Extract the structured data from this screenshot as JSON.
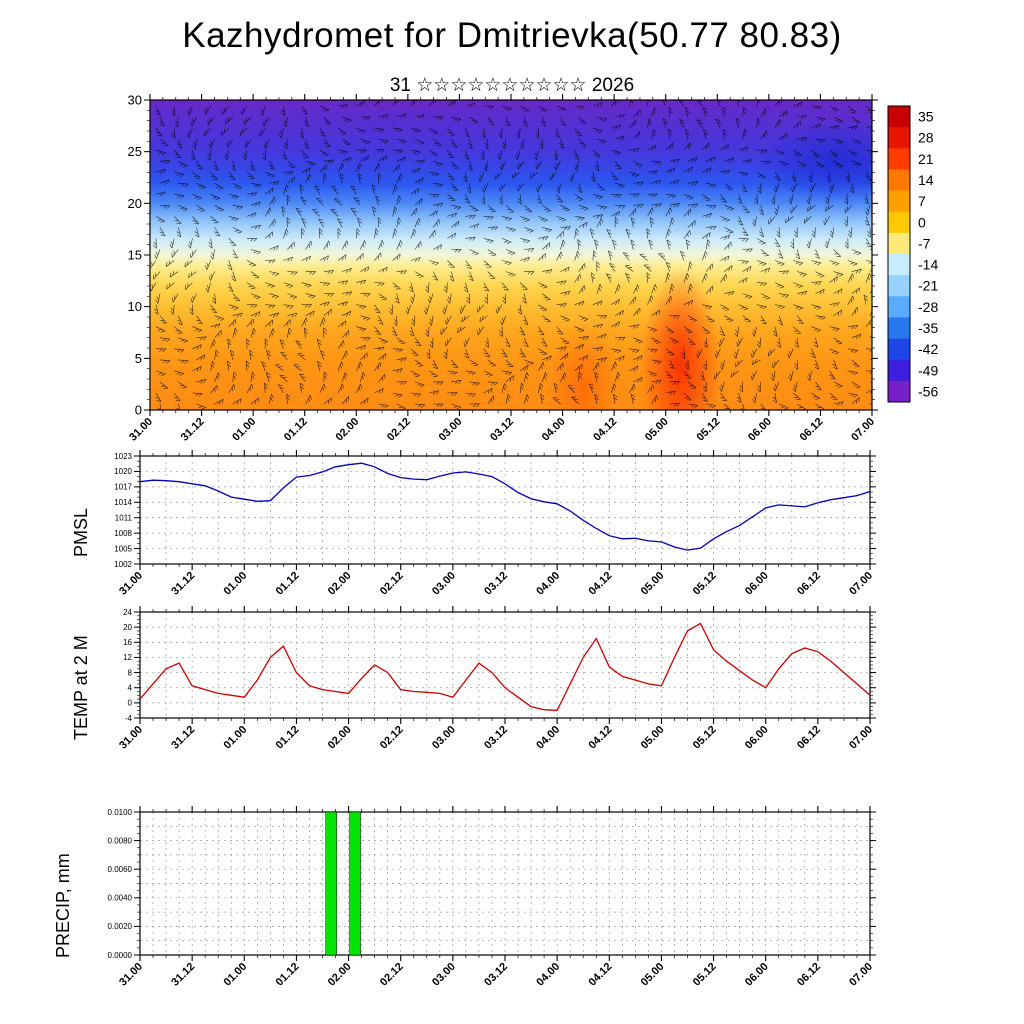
{
  "title": "Kazhydromet for Dmitrievka(50.77 80.83)",
  "subtitle": "31 ☆☆☆☆☆☆☆☆☆☆ 2026",
  "time_axis": {
    "labels": [
      "31.00",
      "31.12",
      "01.00",
      "01.12",
      "02.00",
      "02.12",
      "03.00",
      "03.12",
      "04.00",
      "04.12",
      "05.00",
      "05.12",
      "06.00",
      "06.12",
      "07.00"
    ],
    "hours_span": 168,
    "major_step_hours": 12,
    "minor_step_hours": 3
  },
  "chart_data": [
    {
      "type": "heatmap",
      "name": "cross-section",
      "label": "",
      "description": "Vertical cross-section of temperature (shaded) with wind barbs; warm orange/red near surface, cold blue/purple aloft; warmest red core near 05.00-05.12, coldest dark blue aloft at right edge",
      "ylim": [
        0,
        30
      ],
      "yticks": [
        0,
        5,
        10,
        15,
        20,
        25,
        30
      ],
      "colorbar_ticks": [
        35,
        28,
        21,
        14,
        7,
        0,
        -7,
        -14,
        -21,
        -28,
        -35,
        -42,
        -49,
        -56
      ],
      "colorbar_colors": [
        "#c80000",
        "#e61400",
        "#ff3c00",
        "#ff7800",
        "#ffa000",
        "#ffc800",
        "#ffe978",
        "#c8ecff",
        "#96d2ff",
        "#5aaaff",
        "#2878f0",
        "#1e46e6",
        "#3c1edc",
        "#7820c8"
      ],
      "fill_gradient": [
        {
          "o": 0.0,
          "c": "#6a28c8"
        },
        {
          "o": 0.08,
          "c": "#5530d2"
        },
        {
          "o": 0.16,
          "c": "#4638dc"
        },
        {
          "o": 0.22,
          "c": "#3746e6"
        },
        {
          "o": 0.27,
          "c": "#2d5af0"
        },
        {
          "o": 0.33,
          "c": "#4b85f5"
        },
        {
          "o": 0.39,
          "c": "#8ec2fa"
        },
        {
          "o": 0.45,
          "c": "#cdeafc"
        },
        {
          "o": 0.5,
          "c": "#f2f7d8"
        },
        {
          "o": 0.54,
          "c": "#fdeb8c"
        },
        {
          "o": 0.6,
          "c": "#ffd550"
        },
        {
          "o": 0.67,
          "c": "#ffbe32"
        },
        {
          "o": 0.75,
          "c": "#ffa51e"
        },
        {
          "o": 0.85,
          "c": "#ff9614"
        },
        {
          "o": 1.0,
          "c": "#ff8c14"
        }
      ],
      "features": [
        {
          "kind": "warm-core",
          "x": 0.735,
          "y": 0.86,
          "rx": 0.055,
          "ry": 0.32,
          "color": "#ff2800",
          "opacity": 0.9
        },
        {
          "kind": "warm-core",
          "x": 0.6,
          "y": 0.92,
          "rx": 0.05,
          "ry": 0.2,
          "color": "#ff5000",
          "opacity": 0.55
        },
        {
          "kind": "cold-core",
          "x": 0.95,
          "y": 0.2,
          "rx": 0.11,
          "ry": 0.13,
          "color": "#1e28d2",
          "opacity": 0.8
        },
        {
          "kind": "cold-band",
          "x": 0.5,
          "y": 0.26,
          "rx": 0.52,
          "ry": 0.035,
          "color": "#2d50ee",
          "opacity": 0.45
        }
      ],
      "overlay": "wind-barbs"
    },
    {
      "type": "line",
      "name": "pmsl",
      "label": "PMSL",
      "color": "#0000bb",
      "ylim": [
        1002,
        1023
      ],
      "yticks": [
        1002,
        1005,
        1008,
        1011,
        1014,
        1017,
        1020,
        1023
      ],
      "x_hours": [
        0,
        3,
        6,
        9,
        12,
        15,
        18,
        21,
        24,
        27,
        30,
        33,
        36,
        39,
        42,
        45,
        48,
        51,
        54,
        57,
        60,
        63,
        66,
        69,
        72,
        75,
        78,
        81,
        84,
        87,
        90,
        93,
        96,
        99,
        102,
        105,
        108,
        111,
        114,
        117,
        120,
        123,
        126,
        129,
        132,
        135,
        138,
        141,
        144,
        147,
        150,
        153,
        156,
        159,
        162,
        165,
        168
      ],
      "values": [
        1018.0,
        1018.3,
        1018.2,
        1018.0,
        1017.6,
        1017.2,
        1016.2,
        1015.0,
        1014.6,
        1014.2,
        1014.3,
        1016.8,
        1018.9,
        1019.2,
        1019.9,
        1020.9,
        1021.3,
        1021.6,
        1020.9,
        1019.6,
        1018.8,
        1018.5,
        1018.4,
        1019.1,
        1019.7,
        1019.9,
        1019.5,
        1019.0,
        1017.6,
        1015.9,
        1014.7,
        1014.1,
        1013.7,
        1012.3,
        1010.5,
        1008.9,
        1007.5,
        1006.9,
        1007.0,
        1006.5,
        1006.3,
        1005.3,
        1004.7,
        1005.1,
        1006.9,
        1008.3,
        1009.5,
        1011.2,
        1012.9,
        1013.5,
        1013.3,
        1013.1,
        1013.9,
        1014.5,
        1014.9,
        1015.3,
        1016.1
      ]
    },
    {
      "type": "line",
      "name": "temp2m",
      "label": "TEMP at 2 M",
      "color": "#cc0000",
      "ylim": [
        -4,
        24
      ],
      "yticks": [
        -4,
        0,
        4,
        8,
        12,
        16,
        20,
        24
      ],
      "x_hours": [
        0,
        3,
        6,
        9,
        12,
        15,
        18,
        21,
        24,
        27,
        30,
        33,
        36,
        39,
        42,
        45,
        48,
        51,
        54,
        57,
        60,
        63,
        66,
        69,
        72,
        75,
        78,
        81,
        84,
        87,
        90,
        93,
        96,
        99,
        102,
        105,
        108,
        111,
        114,
        117,
        120,
        123,
        126,
        129,
        132,
        135,
        138,
        141,
        144,
        147,
        150,
        153,
        156,
        159,
        162,
        165,
        168
      ],
      "values": [
        1.0,
        5.0,
        9.0,
        10.5,
        4.5,
        3.5,
        2.5,
        2.0,
        1.5,
        6.0,
        12.0,
        15.0,
        8.0,
        4.5,
        3.5,
        3.0,
        2.5,
        6.5,
        10.0,
        8.0,
        3.5,
        3.0,
        2.8,
        2.5,
        1.5,
        6.0,
        10.5,
        8.0,
        4.0,
        1.5,
        -1.0,
        -1.8,
        -2.0,
        5.0,
        12.0,
        17.0,
        9.5,
        7.0,
        6.0,
        5.0,
        4.5,
        12.0,
        19.0,
        21.0,
        14.0,
        11.0,
        8.5,
        6.0,
        4.0,
        9.0,
        13.0,
        14.5,
        13.5,
        11.0,
        8.0,
        5.0,
        2.0
      ]
    },
    {
      "type": "bar",
      "name": "precip",
      "label": "PRECIP, mm",
      "color": "#00e400",
      "ylim": [
        0,
        0.01
      ],
      "yticks": [
        0,
        0.002,
        0.004,
        0.006,
        0.008,
        0.01
      ],
      "ytick_labels": [
        "0.0000",
        "0.0020",
        "0.0040",
        "0.0060",
        "0.0080",
        "0.0100"
      ],
      "bar_width_hours": 2.5,
      "bars": [
        {
          "hour": 44,
          "value": 0.01
        },
        {
          "hour": 49.5,
          "value": 0.01
        }
      ]
    }
  ]
}
